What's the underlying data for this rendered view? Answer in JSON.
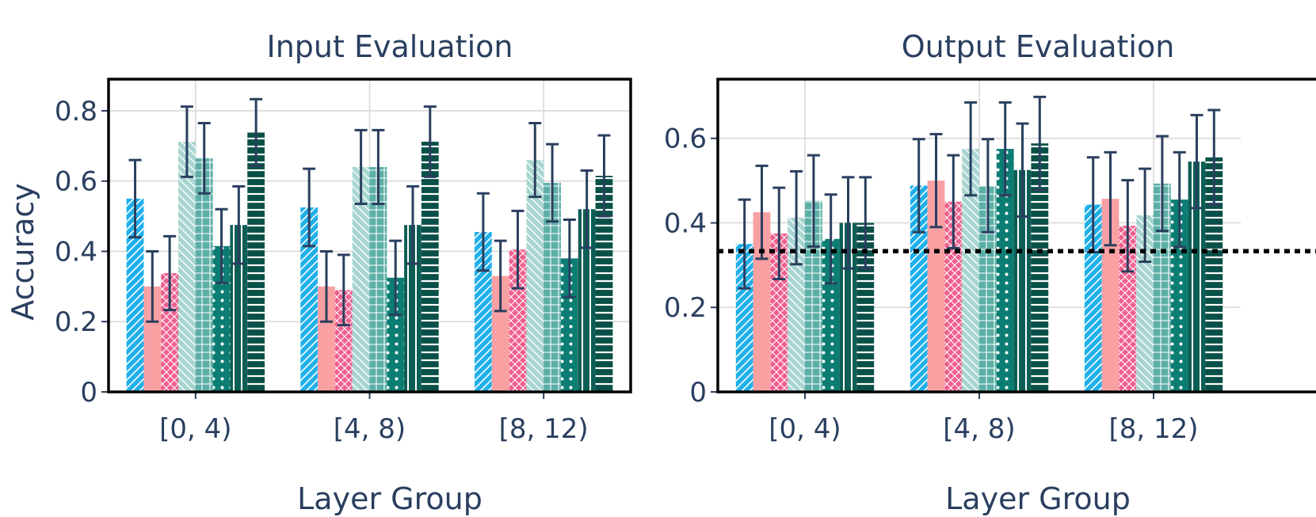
{
  "chart_data": [
    {
      "type": "bar",
      "title": "Input Evaluation",
      "xlabel": "Layer Group",
      "ylabel": "Accuracy",
      "categories": [
        "[0, 4)",
        "[4, 8)",
        "[8, 12)"
      ],
      "ylim": [
        0,
        0.89
      ],
      "yticks": [
        {
          "value": 0,
          "label": "0"
        },
        {
          "value": 0.2,
          "label": "0.2"
        },
        {
          "value": 0.4,
          "label": "0.4"
        },
        {
          "value": 0.6,
          "label": "0.6"
        },
        {
          "value": 0.8,
          "label": "0.8"
        }
      ],
      "grid": true,
      "series": [
        {
          "values": [
            0.55,
            0.525,
            0.455
          ],
          "errors": [
            0.11,
            0.11,
            0.11
          ]
        },
        {
          "values": [
            0.3,
            0.3,
            0.33
          ],
          "errors": [
            0.1,
            0.1,
            0.1
          ]
        },
        {
          "values": [
            0.338,
            0.29,
            0.405
          ],
          "errors": [
            0.105,
            0.1,
            0.11
          ]
        },
        {
          "values": [
            0.712,
            0.64,
            0.66
          ],
          "errors": [
            0.1,
            0.105,
            0.105
          ]
        },
        {
          "values": [
            0.665,
            0.64,
            0.595
          ],
          "errors": [
            0.1,
            0.105,
            0.11
          ]
        },
        {
          "values": [
            0.415,
            0.325,
            0.38
          ],
          "errors": [
            0.105,
            0.105,
            0.11
          ]
        },
        {
          "values": [
            0.475,
            0.475,
            0.52
          ],
          "errors": [
            0.11,
            0.11,
            0.11
          ]
        },
        {
          "values": [
            0.738,
            0.712,
            0.615
          ],
          "errors": [
            0.095,
            0.1,
            0.115
          ]
        }
      ]
    },
    {
      "type": "bar",
      "title": "Output Evaluation",
      "xlabel": "Layer Group",
      "ylabel": "",
      "categories": [
        "[0, 4)",
        "[4, 8)",
        "[8, 12)"
      ],
      "ylim": [
        0,
        0.74
      ],
      "yticks": [
        {
          "value": 0,
          "label": "0"
        },
        {
          "value": 0.2,
          "label": "0.2"
        },
        {
          "value": 0.4,
          "label": "0.4"
        },
        {
          "value": 0.6,
          "label": "0.6"
        }
      ],
      "grid": true,
      "reference_line": 0.333,
      "series": [
        {
          "values": [
            0.35,
            0.488,
            0.443
          ],
          "errors": [
            0.105,
            0.11,
            0.112
          ]
        },
        {
          "values": [
            0.425,
            0.5,
            0.457
          ],
          "errors": [
            0.11,
            0.11,
            0.11
          ]
        },
        {
          "values": [
            0.375,
            0.45,
            0.393
          ],
          "errors": [
            0.108,
            0.11,
            0.108
          ]
        },
        {
          "values": [
            0.412,
            0.575,
            0.418
          ],
          "errors": [
            0.11,
            0.11,
            0.11
          ]
        },
        {
          "values": [
            0.452,
            0.488,
            0.493
          ],
          "errors": [
            0.108,
            0.11,
            0.112
          ]
        },
        {
          "values": [
            0.362,
            0.575,
            0.455
          ],
          "errors": [
            0.105,
            0.11,
            0.112
          ]
        },
        {
          "values": [
            0.4,
            0.525,
            0.545
          ],
          "errors": [
            0.108,
            0.11,
            0.11
          ]
        },
        {
          "values": [
            0.4,
            0.588,
            0.555
          ],
          "errors": [
            0.108,
            0.11,
            0.112
          ]
        }
      ]
    }
  ],
  "colors": [
    "#1fb0ea",
    "#f9a0a3",
    "#ef5f8e",
    "#a8d5d1",
    "#5cafa7",
    "#0c7d72",
    "#0c5e55",
    "#095148"
  ],
  "patterns": [
    "diag-right",
    "none",
    "crosshatch",
    "diag-left",
    "grid",
    "dots",
    "vertical",
    "horizontal"
  ],
  "error_color": "#2a3f5f",
  "reference_line_color": "#000000"
}
